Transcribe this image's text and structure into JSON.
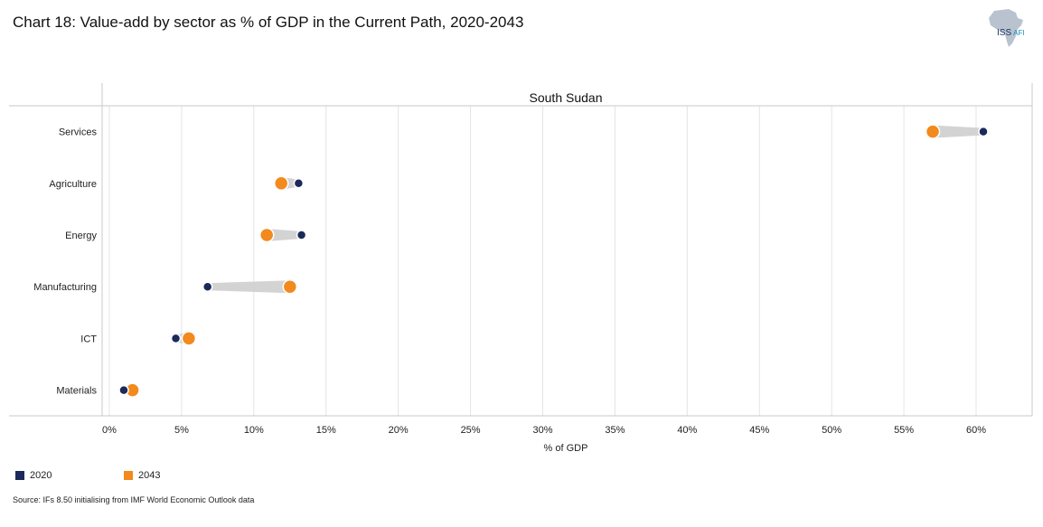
{
  "header": {
    "title": "Chart 18: Value-add by sector as % of GDP in the Current Path, 2020-2043",
    "logo_main": "ISS",
    "logo_sub": "AFI"
  },
  "footer": {
    "source": "Source: IFs 8.50 initialising from IMF World Economic Outlook data"
  },
  "colors": {
    "series_2020": "#1b2a5a",
    "series_2043": "#f28a1e",
    "connector": "#d3d3d3",
    "grid": "#e4e4e4",
    "axis": "#c8c8c8"
  },
  "chart_data": {
    "type": "dumbbell",
    "panel_title": "South Sudan",
    "categories": [
      "Services",
      "Agriculture",
      "Energy",
      "Manufacturing",
      "ICT",
      "Materials"
    ],
    "series": [
      {
        "name": "2020",
        "values": [
          60.5,
          13.1,
          13.3,
          6.8,
          4.6,
          1.0
        ]
      },
      {
        "name": "2043",
        "values": [
          57.0,
          11.9,
          10.9,
          12.5,
          5.5,
          1.6
        ]
      }
    ],
    "xlabel": "% of GDP",
    "xlim": [
      0,
      63
    ],
    "xticks": [
      0,
      5,
      10,
      15,
      20,
      25,
      30,
      35,
      40,
      45,
      50,
      55,
      60
    ],
    "xtick_labels": [
      "0%",
      "5%",
      "10%",
      "15%",
      "20%",
      "25%",
      "30%",
      "35%",
      "40%",
      "45%",
      "50%",
      "55%",
      "60%"
    ],
    "grid": true,
    "legend_position": "bottom-left"
  }
}
